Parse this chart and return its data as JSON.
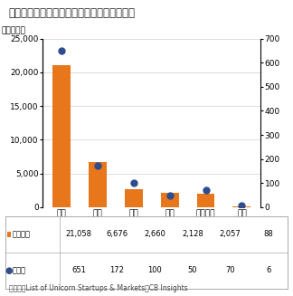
{
  "title": "（図表１）ユニコーン企業数とその時価総額",
  "categories": [
    "米国",
    "中国",
    "ＥＵ",
    "英国",
    "インド゜",
    "日本"
  ],
  "bar_values": [
    21058,
    6676,
    2660,
    2128,
    2057,
    88
  ],
  "dot_values": [
    651,
    172,
    100,
    50,
    70,
    6
  ],
  "bar_color": "#E8761A",
  "dot_color": "#2E4D8F",
  "yleft_max": 25000,
  "yleft_step": 5000,
  "yright_max": 700,
  "yright_step": 100,
  "ylabel_left": "（億ドル）",
  "legend_bar_label": "時価総額",
  "legend_dot_label": "企業数",
  "source": "（出所）List of Unicorn Startups & Markets｜CB Insights",
  "table_bar_vals": [
    "21,058",
    "6,676",
    "2,660",
    "2,128",
    "2,057",
    "88"
  ],
  "table_dot_vals": [
    "651",
    "172",
    "100",
    "50",
    "70",
    "6"
  ]
}
